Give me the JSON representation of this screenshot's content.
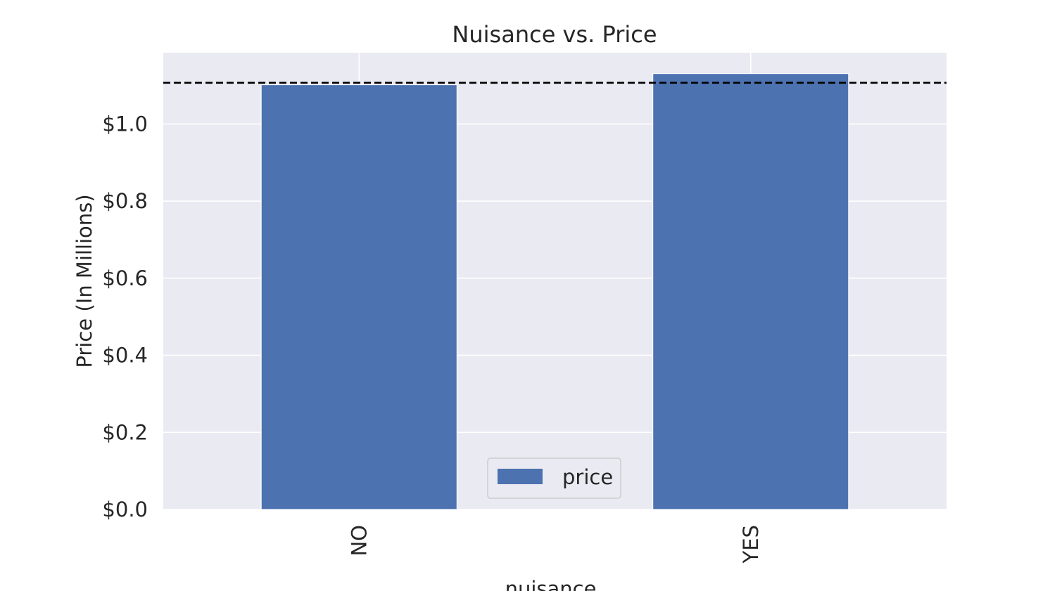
{
  "chart_data": {
    "type": "bar",
    "title": "Nuisance vs. Price",
    "xlabel": "nuisance",
    "ylabel": "Price (In Millions)",
    "categories": [
      "NO",
      "YES"
    ],
    "series": [
      {
        "name": "price",
        "values": [
          1.102,
          1.131
        ],
        "color": "#4c72b0"
      }
    ],
    "reference_line": {
      "y": 1.107,
      "style": "dashed",
      "color": "#000000"
    },
    "ylim": [
      0,
      1.185
    ],
    "yticks": [
      0.0,
      0.2,
      0.4,
      0.6,
      0.8,
      1.0
    ],
    "ytick_labels": [
      "$0.0",
      "$0.2",
      "$0.4",
      "$0.6",
      "$0.8",
      "$1.0"
    ],
    "grid": true,
    "legend_position": "lower-center",
    "background_color": "#eaeaf2"
  }
}
